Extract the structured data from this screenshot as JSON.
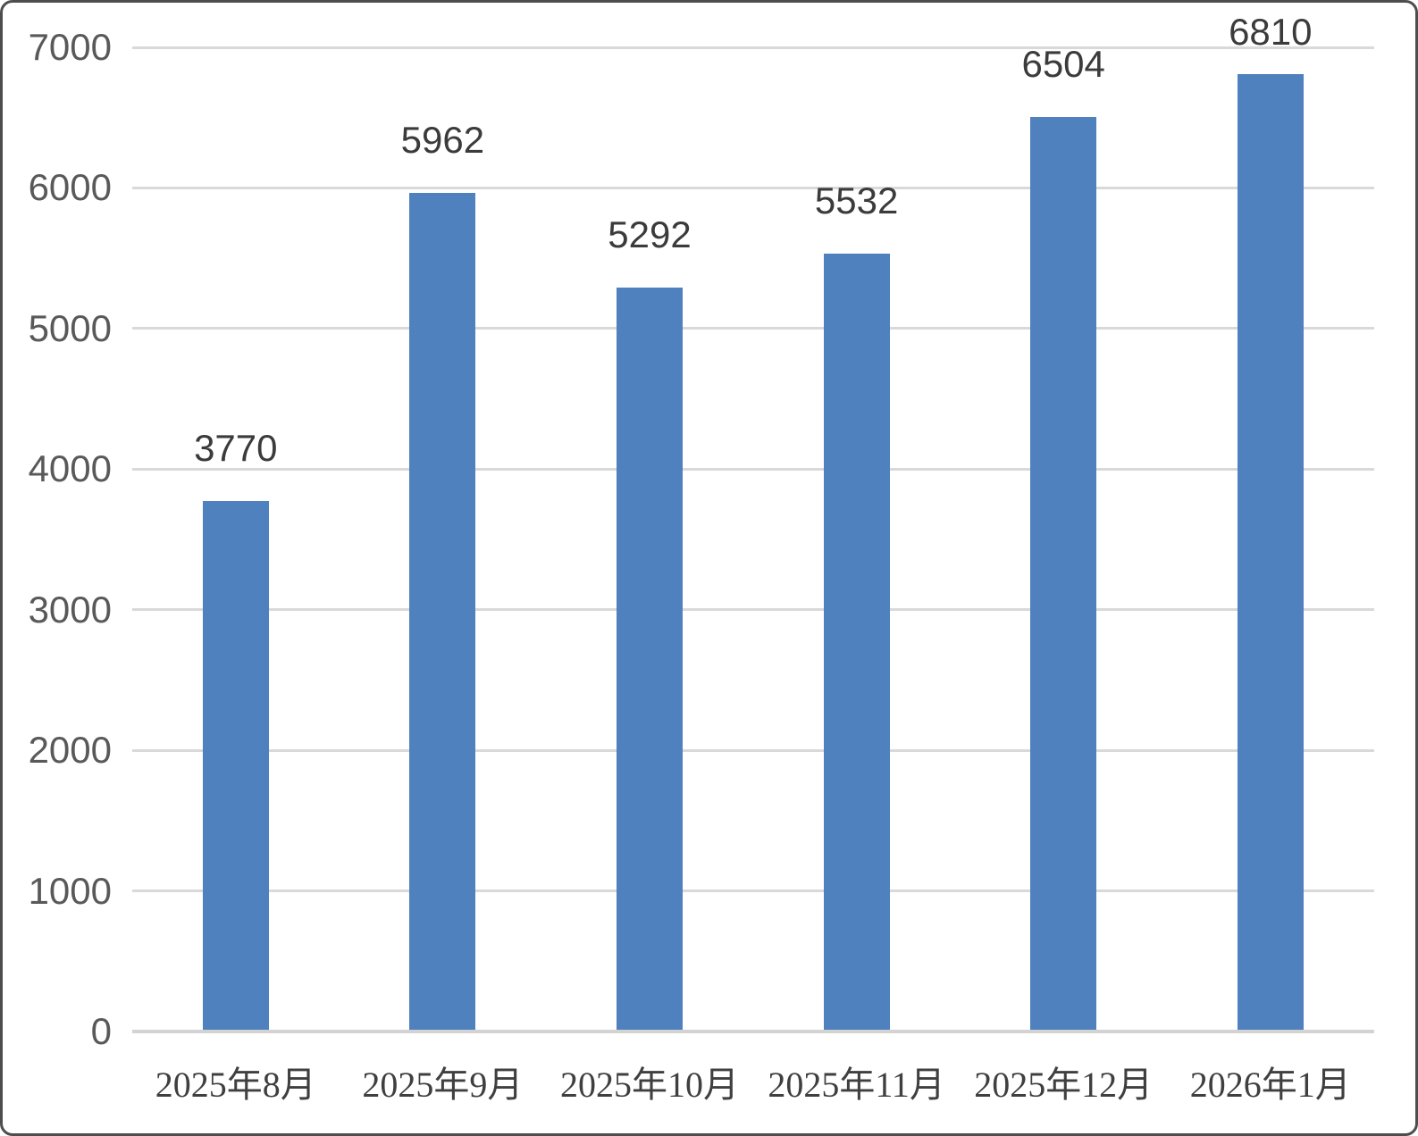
{
  "chart_data": {
    "type": "bar",
    "title": "",
    "xlabel": "",
    "ylabel": "",
    "categories": [
      "2025年8月",
      "2025年9月",
      "2025年10月",
      "2025年11月",
      "2025年12月",
      "2026年1月"
    ],
    "values": [
      3770,
      5962,
      5292,
      5532,
      6504,
      6810
    ],
    "data_labels": [
      "3770",
      "5962",
      "5292",
      "5532",
      "6504",
      "6810"
    ],
    "ylim": [
      0,
      7000
    ],
    "ytick_interval": 1000,
    "yticks": [
      "0",
      "1000",
      "2000",
      "3000",
      "4000",
      "5000",
      "6000",
      "7000"
    ],
    "grid": true,
    "legend_position": "none",
    "colors": {
      "bar_fill": "#4e81bd",
      "gridline": "#d9d9d9",
      "axis_line": "#d3d3d3",
      "y_tick_text": "#595959",
      "data_label_text": "#3b3b3b",
      "x_tick_text": "#3f3f3f",
      "frame_border": "#4d4d4d",
      "background": "#ffffff"
    }
  }
}
